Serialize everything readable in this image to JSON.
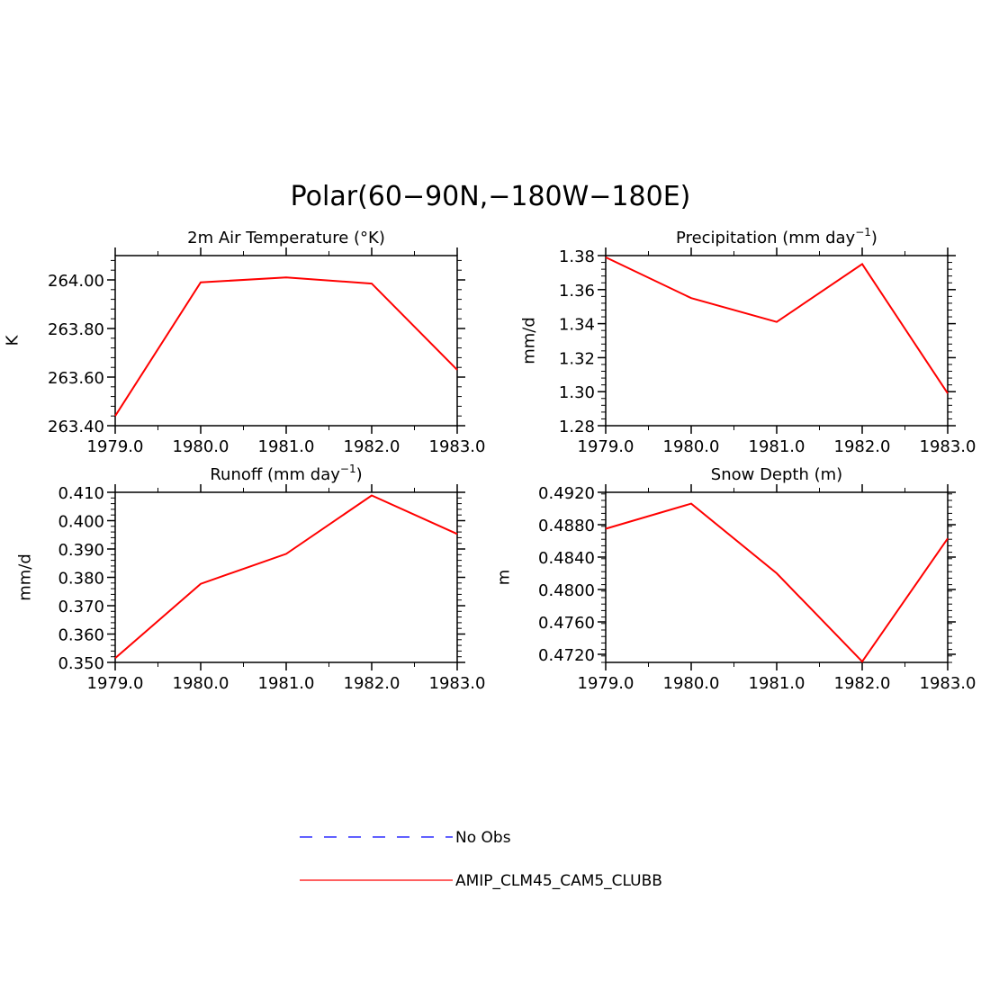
{
  "figure": {
    "title": "Polar(60−90N,−180W−180E)"
  },
  "legend": {
    "items": [
      {
        "label": "No Obs",
        "color": "#0000ff",
        "style": "dashed"
      },
      {
        "label": "AMIP_CLM45_CAM5_CLUBB",
        "color": "#ff0000",
        "style": "solid"
      }
    ]
  },
  "chart_data": [
    {
      "type": "line",
      "title": "2m Air Temperature (°K)",
      "xlabel": "",
      "ylabel": "K",
      "x": [
        1979,
        1980,
        1981,
        1982,
        1983
      ],
      "xticklabels": [
        "1979.0",
        "1980.0",
        "1981.0",
        "1982.0",
        "1983.0"
      ],
      "xlim": [
        1979,
        1983
      ],
      "ylim": [
        263.4,
        264.1
      ],
      "yticks": [
        263.4,
        263.6,
        263.8,
        264.0
      ],
      "yticklabels": [
        "263.40",
        "263.60",
        "263.80",
        "264.00"
      ],
      "series": [
        {
          "name": "AMIP_CLM45_CAM5_CLUBB",
          "color": "#ff0000",
          "values": [
            263.44,
            263.99,
            264.01,
            263.985,
            263.63
          ]
        }
      ]
    },
    {
      "type": "line",
      "title": "Precipitation (mm day",
      "title_sup": "−1",
      "title_end": ")",
      "xlabel": "",
      "ylabel": "mm/d",
      "x": [
        1979,
        1980,
        1981,
        1982,
        1983
      ],
      "xticklabels": [
        "1979.0",
        "1980.0",
        "1981.0",
        "1982.0",
        "1983.0"
      ],
      "xlim": [
        1979,
        1983
      ],
      "ylim": [
        1.28,
        1.38
      ],
      "yticks": [
        1.28,
        1.3,
        1.32,
        1.34,
        1.36,
        1.38
      ],
      "yticklabels": [
        "1.28",
        "1.30",
        "1.32",
        "1.34",
        "1.36",
        "1.38"
      ],
      "series": [
        {
          "name": "AMIP_CLM45_CAM5_CLUBB",
          "color": "#ff0000",
          "values": [
            1.379,
            1.355,
            1.341,
            1.375,
            1.299
          ]
        }
      ]
    },
    {
      "type": "line",
      "title": "Runoff (mm day",
      "title_sup": "−1",
      "title_end": ")",
      "xlabel": "",
      "ylabel": "mm/d",
      "x": [
        1979,
        1980,
        1981,
        1982,
        1983
      ],
      "xticklabels": [
        "1979.0",
        "1980.0",
        "1981.0",
        "1982.0",
        "1983.0"
      ],
      "xlim": [
        1979,
        1983
      ],
      "ylim": [
        0.35,
        0.41
      ],
      "yticks": [
        0.35,
        0.36,
        0.37,
        0.38,
        0.39,
        0.4,
        0.41
      ],
      "yticklabels": [
        "0.350",
        "0.360",
        "0.370",
        "0.380",
        "0.390",
        "0.400",
        "0.410"
      ],
      "series": [
        {
          "name": "AMIP_CLM45_CAM5_CLUBB",
          "color": "#ff0000",
          "values": [
            0.3515,
            0.3777,
            0.3883,
            0.4089,
            0.3953
          ]
        }
      ]
    },
    {
      "type": "line",
      "title": "Snow Depth (m)",
      "xlabel": "",
      "ylabel": "m",
      "x": [
        1979,
        1980,
        1981,
        1982,
        1983
      ],
      "xticklabels": [
        "1979.0",
        "1980.0",
        "1981.0",
        "1982.0",
        "1983.0"
      ],
      "xlim": [
        1979,
        1983
      ],
      "ylim": [
        0.471,
        0.492
      ],
      "yticks": [
        0.472,
        0.476,
        0.48,
        0.484,
        0.488,
        0.492
      ],
      "yticklabels": [
        "0.4720",
        "0.4760",
        "0.4800",
        "0.4840",
        "0.4880",
        "0.4920"
      ],
      "series": [
        {
          "name": "AMIP_CLM45_CAM5_CLUBB",
          "color": "#ff0000",
          "values": [
            0.4875,
            0.4906,
            0.482,
            0.4711,
            0.4863
          ]
        }
      ]
    }
  ]
}
